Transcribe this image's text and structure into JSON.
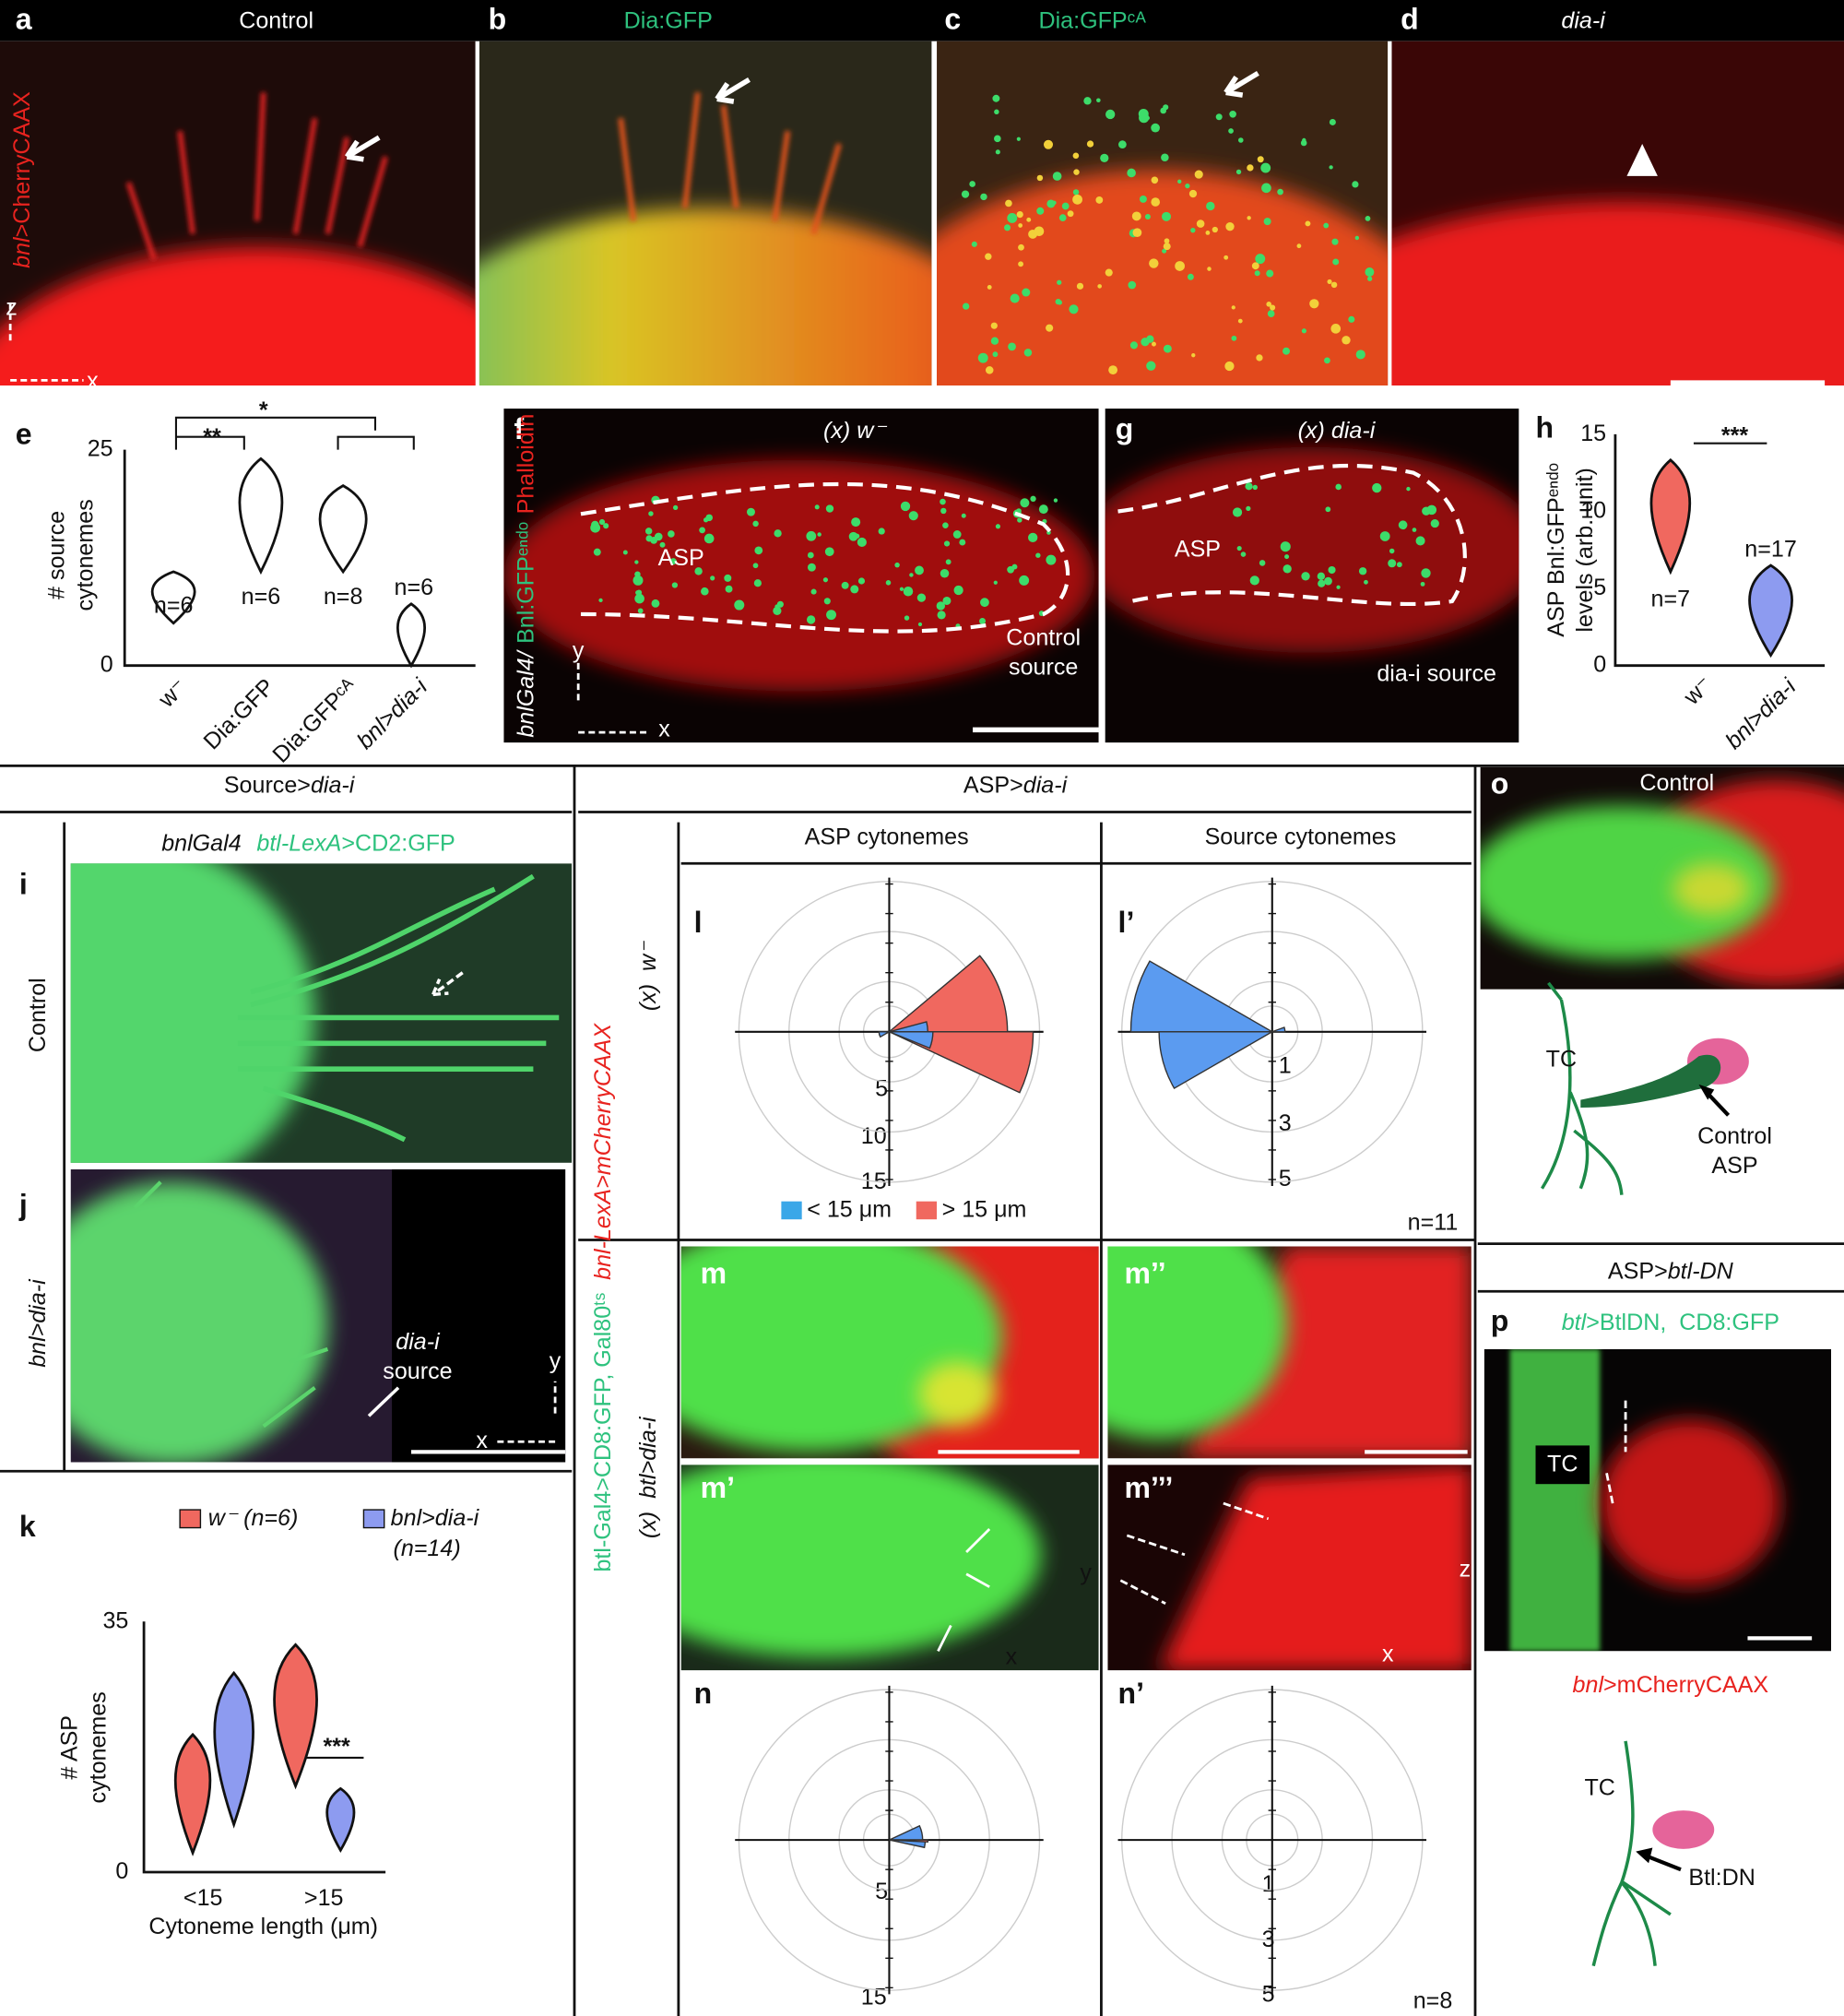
{
  "top": {
    "a": {
      "label": "a",
      "title": "Control"
    },
    "b": {
      "label": "b",
      "title": "Dia:GFP"
    },
    "c": {
      "label": "c",
      "title": "Dia:GFPᶜᴬ"
    },
    "d": {
      "label": "d",
      "title": "dia-i"
    },
    "side": [
      "bnl",
      ">CherryCAAX"
    ],
    "axes": [
      "z",
      "x"
    ]
  },
  "e": {
    "label": "e",
    "ylabel": [
      "# source",
      "cytonemes"
    ],
    "yticks": [
      "25",
      "0"
    ],
    "n": [
      "n=6",
      "n=6",
      "n=8",
      "n=6"
    ],
    "categories": [
      "w⁻",
      "Dia:GFP",
      "Dia:GFPᶜᴬ",
      "bnl>dia-i"
    ],
    "significance": [
      "**",
      "*"
    ]
  },
  "f": {
    "label": "f",
    "title": "(x) w⁻",
    "asp": "ASP",
    "source": [
      "Control",
      "source"
    ]
  },
  "g": {
    "label": "g",
    "title": "(x) dia-i",
    "asp": "ASP",
    "source": "dia-i source"
  },
  "fg_side": [
    "bnlGal4/",
    "Bnl:GFPᵉⁿᵈᵒ",
    "Phalloidin"
  ],
  "fg_axes": [
    "y",
    "x"
  ],
  "h": {
    "label": "h",
    "ylabel": [
      "ASP Bnl:GFPᵉⁿᵈᵒ",
      "levels (arb. unit)"
    ],
    "yticks": [
      "15",
      "10",
      "5",
      "0"
    ],
    "n": [
      "n=7",
      "n=17"
    ],
    "significance": "***",
    "categories": [
      "w⁻",
      "bnl>dia-i"
    ]
  },
  "sections": {
    "source": [
      "Source>",
      "dia-i"
    ],
    "asp": [
      "ASP>",
      "dia-i"
    ],
    "asp_btl": [
      "ASP>",
      "btl-DN"
    ]
  },
  "i": {
    "label": "i",
    "side": "Control",
    "header": [
      "bnlGal4",
      "btl-LexA",
      ">CD2:GFP"
    ]
  },
  "j": {
    "label": "j",
    "side": "bnl>dia-i",
    "source": [
      "dia-i",
      "source"
    ],
    "axes": [
      "y",
      "x"
    ]
  },
  "k": {
    "label": "k",
    "legend": [
      "w⁻ (n=6)",
      "bnl>dia-i",
      "(n=14)"
    ],
    "yticks": [
      "35",
      "0"
    ],
    "ylabel": [
      "# ASP",
      "cytonemes"
    ],
    "categories": [
      "<15",
      ">15"
    ],
    "xlabel": "Cytoneme length (μm)",
    "significance": "***"
  },
  "asp_side": [
    "btl-Gal4>CD8:GFP, Gal80ᵗˢ",
    "bnl-LexA>mCherryCAAX"
  ],
  "rows": [
    "(x)  w⁻",
    "(x)  btl>dia-i"
  ],
  "columns": [
    "ASP cytonemes",
    "Source cytonemes"
  ],
  "l": {
    "label": "l",
    "ticks": [
      "5",
      "10",
      "15"
    ],
    "legend": [
      "< 15 μm",
      "> 15 μm"
    ]
  },
  "l2": {
    "label": "l’",
    "ticks": [
      "1",
      "3",
      "5"
    ],
    "n": "n=11"
  },
  "m": {
    "labels": [
      "m",
      "m’’",
      "m’",
      "m’’’"
    ],
    "axes_m1": [
      "y",
      "x"
    ],
    "axes_m3": [
      "z",
      "x"
    ]
  },
  "n": {
    "label": "n",
    "ticks": [
      "5",
      "15"
    ]
  },
  "n2": {
    "label": "n’",
    "ticks": [
      "1",
      "3",
      "5"
    ],
    "n": "n=8"
  },
  "o": {
    "label": "o",
    "title": "Control",
    "tc": "TC",
    "asp": [
      "Control",
      "ASP"
    ]
  },
  "p": {
    "label": "p",
    "header": [
      "btl",
      ">BtlDN,  CD8:GFP"
    ],
    "tc": "TC",
    "footer": [
      "bnl",
      ">mCherryCAAX"
    ],
    "tc2": "TC",
    "btl": "Btl:DN"
  }
}
